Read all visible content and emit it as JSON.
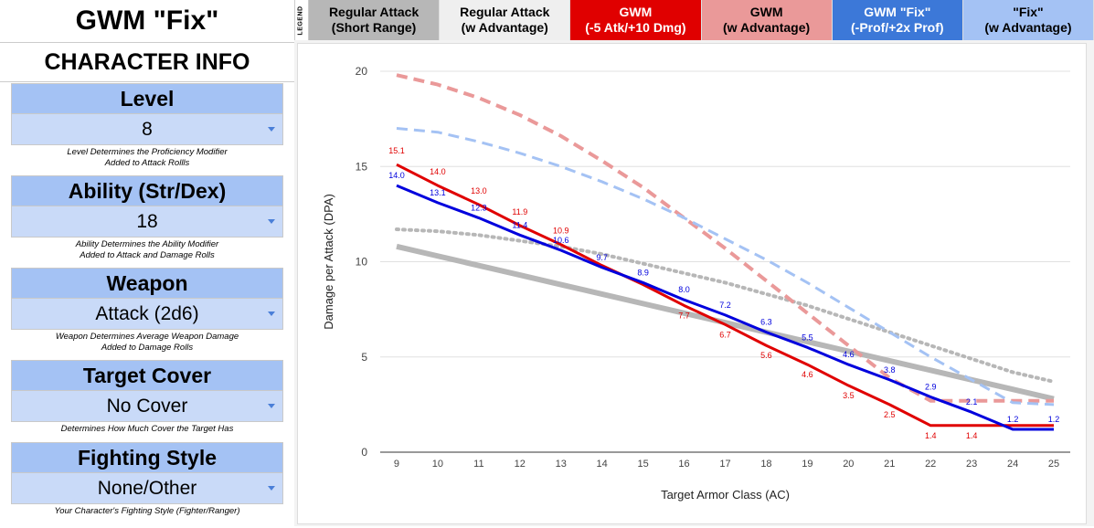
{
  "sheet": {
    "title": "GWM \"Fix\"",
    "section_title": "CHARACTER INFO",
    "groups": [
      {
        "heading": "Level",
        "value": "8",
        "note": "Level Determines the Proficiency Modifier\nAdded to Attack Rollls"
      },
      {
        "heading": "Ability (Str/Dex)",
        "value": "18",
        "note": "Ability Determines the Ability Modifier\nAdded to Attack and Damage Rolls"
      },
      {
        "heading": "Weapon",
        "value": "Attack (2d6)",
        "note": "Weapon Determines Average Weapon Damage\nAdded to Damage Rolls"
      },
      {
        "heading": "Target Cover",
        "value": "No Cover",
        "note": "Determines How Much Cover the Target Has"
      },
      {
        "heading": "Fighting Style",
        "value": "None/Other",
        "note": "Your Character's Fighting Style (Fighter/Ranger)"
      }
    ]
  },
  "legend": {
    "tag": "LEGEND",
    "items": [
      {
        "line1": "Regular Attack",
        "line2": "(Short Range)",
        "bg": "#b7b7b7",
        "fg": "#000000"
      },
      {
        "line1": "Regular Attack",
        "line2": "(w Advantage)",
        "bg": "#efefef",
        "fg": "#000000"
      },
      {
        "line1": "GWM",
        "line2": "(-5 Atk/+10 Dmg)",
        "bg": "#e00000",
        "fg": "#ffffff"
      },
      {
        "line1": "GWM",
        "line2": "(w Advantage)",
        "bg": "#ea9999",
        "fg": "#000000"
      },
      {
        "line1": "GWM \"Fix\"",
        "line2": "(-Prof/+2x Prof)",
        "bg": "#3c78d8",
        "fg": "#ffffff"
      },
      {
        "line1": "\"Fix\"",
        "line2": "(w Advantage)",
        "bg": "#a4c2f4",
        "fg": "#000000"
      }
    ]
  },
  "chart_data": {
    "type": "line",
    "xlabel": "Target Armor Class (AC)",
    "ylabel": "Damage per Attack (DPA)",
    "x": [
      9,
      10,
      11,
      12,
      13,
      14,
      15,
      16,
      17,
      18,
      19,
      20,
      21,
      22,
      23,
      24,
      25
    ],
    "xlim": [
      8.6,
      25.4
    ],
    "ylim": [
      0,
      20
    ],
    "yticks": [
      0,
      5,
      10,
      15,
      20
    ],
    "grid": true,
    "series": [
      {
        "name": "Regular Attack (Short Range)",
        "color": "#b7b7b7",
        "style": "solid",
        "width": 6,
        "values": [
          10.8,
          10.3,
          9.8,
          9.3,
          8.8,
          8.3,
          7.8,
          7.3,
          6.8,
          6.3,
          5.8,
          5.3,
          4.8,
          4.3,
          3.8,
          3.3,
          2.8
        ]
      },
      {
        "name": "Regular Attack (w Advantage)",
        "color": "#b7b7b7",
        "style": "dotted",
        "width": 4,
        "values": [
          11.7,
          11.6,
          11.4,
          11.1,
          10.8,
          10.4,
          9.9,
          9.4,
          8.9,
          8.3,
          7.7,
          7.0,
          6.3,
          5.6,
          4.9,
          4.2,
          3.7
        ]
      },
      {
        "name": "GWM (-5 Atk/+10 Dmg)",
        "color": "#e00000",
        "style": "solid",
        "width": 3,
        "values": [
          15.1,
          14.0,
          13.0,
          11.9,
          10.9,
          9.8,
          8.8,
          7.7,
          6.7,
          5.6,
          4.6,
          3.5,
          2.5,
          1.4,
          1.4,
          1.4,
          1.4
        ],
        "labels": [
          "15.1",
          "14.0",
          "13.0",
          "11.9",
          "10.9",
          "",
          "",
          "7.7",
          "6.7",
          "5.6",
          "4.6",
          "3.5",
          "2.5",
          "1.4",
          "1.4",
          "",
          ""
        ]
      },
      {
        "name": "GWM (w Advantage)",
        "color": "#ea9999",
        "style": "dashed",
        "width": 4,
        "values": [
          19.8,
          19.3,
          18.6,
          17.7,
          16.6,
          15.3,
          13.9,
          12.3,
          10.7,
          9.0,
          7.3,
          5.6,
          3.9,
          2.7,
          2.7,
          2.7,
          2.7
        ]
      },
      {
        "name": "GWM \"Fix\" (-Prof/+2x Prof)",
        "color": "#0000dd",
        "style": "solid",
        "width": 3,
        "values": [
          14.0,
          13.1,
          12.3,
          11.4,
          10.6,
          9.7,
          8.9,
          8.0,
          7.2,
          6.3,
          5.5,
          4.6,
          3.8,
          2.9,
          2.1,
          1.2,
          1.2
        ],
        "labels": [
          "14.0",
          "13.1",
          "12.3",
          "11.4",
          "10.6",
          "9.7",
          "8.9",
          "8.0",
          "7.2",
          "6.3",
          "5.5",
          "4.6",
          "3.8",
          "2.9",
          "2.1",
          "1.2",
          "1.2"
        ]
      },
      {
        "name": "\"Fix\" (w Advantage)",
        "color": "#a4c2f4",
        "style": "dashed",
        "width": 3,
        "values": [
          17.0,
          16.8,
          16.3,
          15.7,
          15.0,
          14.2,
          13.3,
          12.3,
          11.2,
          10.1,
          8.9,
          7.6,
          6.3,
          5.0,
          3.8,
          2.6,
          2.5
        ]
      }
    ]
  }
}
